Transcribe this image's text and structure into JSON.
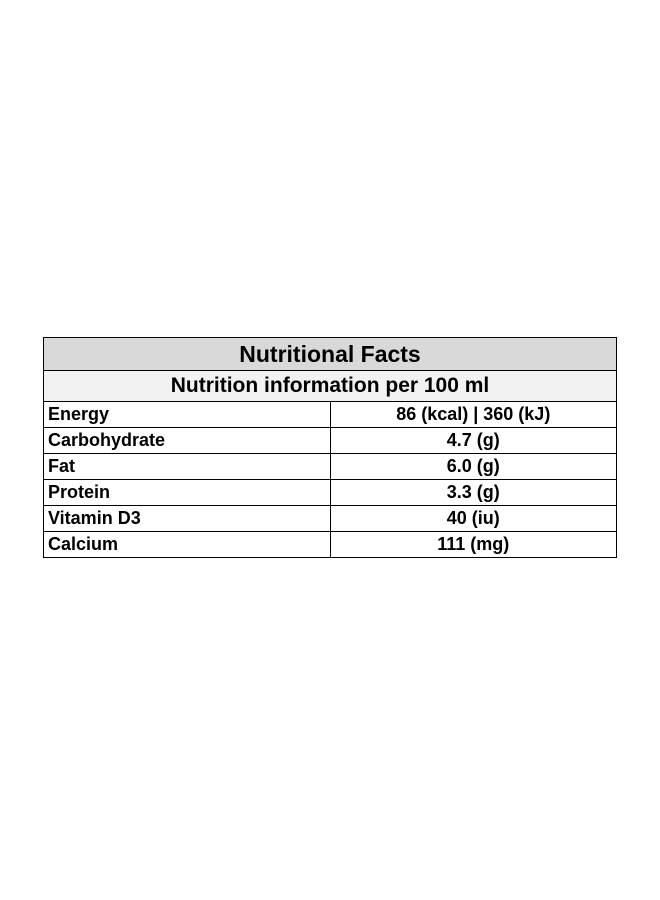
{
  "table": {
    "title": "Nutritional Facts",
    "subtitle": "Nutrition information per 100 ml",
    "rows": [
      {
        "name": "Energy",
        "value": "86 (kcal) | 360 (kJ)"
      },
      {
        "name": "Carbohydrate",
        "value": "4.7 (g)"
      },
      {
        "name": "Fat",
        "value": "6.0 (g)"
      },
      {
        "name": "Protein",
        "value": "3.3 (g)"
      },
      {
        "name": "Vitamin D3",
        "value": "40 (iu)"
      },
      {
        "name": "Calcium",
        "value": "111 (mg)"
      }
    ]
  },
  "colors": {
    "title_background": "#d9d9d9",
    "subtitle_background": "#f2f2f2",
    "border": "#000000"
  }
}
